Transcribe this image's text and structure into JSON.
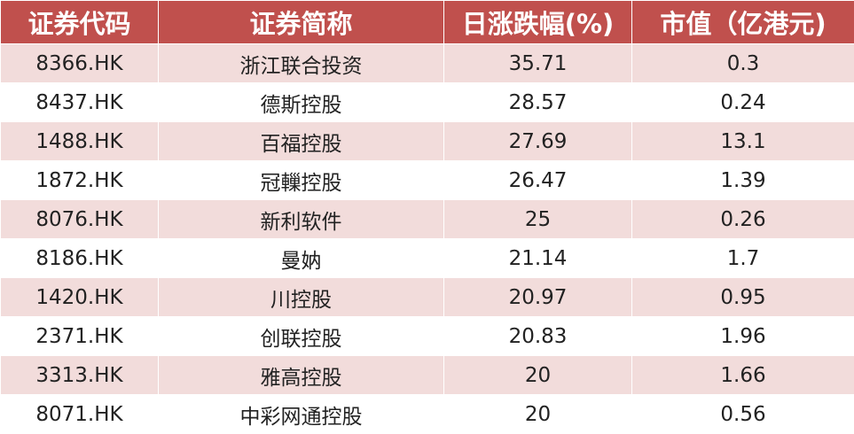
{
  "table": {
    "header": [
      "证券代码",
      "证券简称",
      "日涨跌幅(%)",
      "市值（亿港元)"
    ],
    "rows": [
      [
        "8366.HK",
        "浙江联合投资",
        "35.71",
        "0.3"
      ],
      [
        "8437.HK",
        "德斯控股",
        "28.57",
        "0.24"
      ],
      [
        "1488.HK",
        "百福控股",
        "27.69",
        "13.1"
      ],
      [
        "1872.HK",
        "冠轈控股",
        "26.47",
        "1.39"
      ],
      [
        "8076.HK",
        "新利软件",
        "25",
        "0.26"
      ],
      [
        "8186.HK",
        "曼妠",
        "21.14",
        "1.7"
      ],
      [
        "1420.HK",
        "川控股",
        "20.97",
        "0.95"
      ],
      [
        "2371.HK",
        "创联控股",
        "20.83",
        "1.96"
      ],
      [
        "3313.HK",
        "雅高控股",
        "20",
        "1.66"
      ],
      [
        "8071.HK",
        "中彩网通控股",
        "20",
        "0.56"
      ]
    ]
  }
}
